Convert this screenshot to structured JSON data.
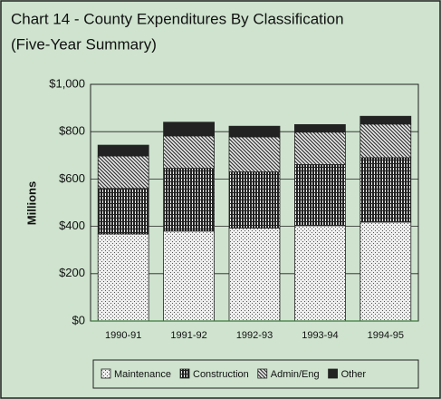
{
  "chart_data": {
    "type": "stacked_bar",
    "title": "Chart 14 - County Expenditures By Classification",
    "subtitle": "(Five-Year Summary)",
    "y_label": "Millions",
    "categories": [
      "1990-91",
      "1991-92",
      "1992-93",
      "1993-94",
      "1994-95"
    ],
    "series": [
      {
        "name": "Maintenance",
        "color": "#555555",
        "pattern": "dots",
        "values": [
          368,
          380,
          393,
          403,
          418
        ]
      },
      {
        "name": "Construction",
        "color": "#222222",
        "pattern": "grid",
        "values": [
          192,
          265,
          237,
          258,
          272
        ]
      },
      {
        "name": "Admin/Eng",
        "color": "#333333",
        "pattern": "diagonal",
        "values": [
          137,
          137,
          148,
          137,
          142
        ]
      },
      {
        "name": "Other",
        "color": "#222222",
        "pattern": "solid",
        "values": [
          46,
          58,
          45,
          32,
          33
        ]
      }
    ],
    "ylim": [
      0,
      1000
    ],
    "yticks": [
      {
        "value": 0,
        "label": "$0"
      },
      {
        "value": 200,
        "label": "$200"
      },
      {
        "value": 400,
        "label": "$400"
      },
      {
        "value": 600,
        "label": "$600"
      },
      {
        "value": 800,
        "label": "$800"
      },
      {
        "value": 1000,
        "label": "$1,000"
      }
    ],
    "grid": true
  }
}
